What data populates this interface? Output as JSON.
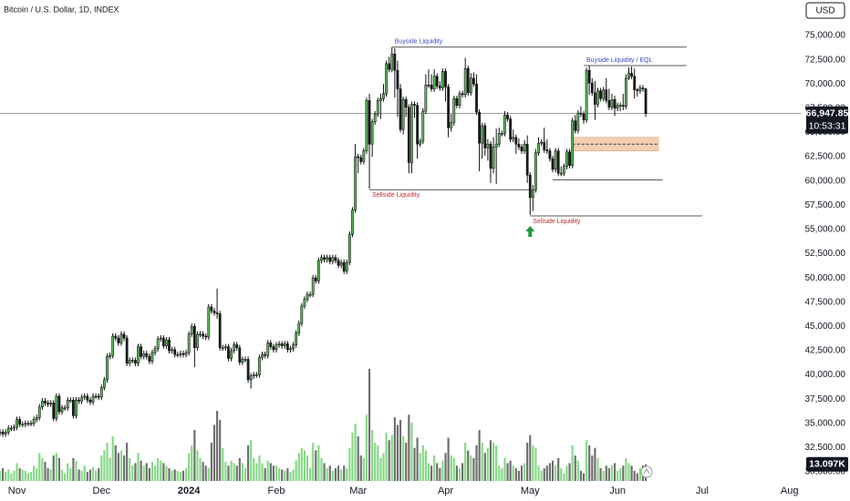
{
  "chart_data": {
    "type": "candlestick",
    "title": "Bitcoin / U.S. Dollar, 1D, INDEX",
    "currency_button": "USD",
    "up_color": "#5cc25c",
    "down_color": "#1a1a1a",
    "volume_up_color": "#86d886",
    "volume_down_color": "#6e6e6e",
    "xlim": [
      0,
      283
    ],
    "xticks": [
      {
        "value": 6,
        "label": "Nov"
      },
      {
        "value": 36,
        "label": "Dec"
      },
      {
        "value": 67,
        "label": "2024"
      },
      {
        "value": 98,
        "label": "Feb"
      },
      {
        "value": 127,
        "label": "Mar"
      },
      {
        "value": 158,
        "label": "Apr"
      },
      {
        "value": 188,
        "label": "May"
      },
      {
        "value": 219,
        "label": "Jun"
      },
      {
        "value": 249,
        "label": "Jul"
      },
      {
        "value": 280,
        "label": "Aug"
      }
    ],
    "ylim": [
      30000,
      75000
    ],
    "yticks": [
      {
        "value": 30000,
        "label": "30,000.00"
      },
      {
        "value": 32500,
        "label": "32,500.00"
      },
      {
        "value": 35000,
        "label": "35,000.00"
      },
      {
        "value": 37500,
        "label": "37,500.00"
      },
      {
        "value": 40000,
        "label": "40,000.00"
      },
      {
        "value": 42500,
        "label": "42,500.00"
      },
      {
        "value": 45000,
        "label": "45,000.00"
      },
      {
        "value": 47500,
        "label": "47,500.00"
      },
      {
        "value": 50000,
        "label": "50,000.00"
      },
      {
        "value": 52500,
        "label": "52,500.00"
      },
      {
        "value": 55000,
        "label": "55,000.00"
      },
      {
        "value": 57500,
        "label": "57,500.00"
      },
      {
        "value": 60000,
        "label": "60,000.00"
      },
      {
        "value": 62500,
        "label": "62,500.00"
      },
      {
        "value": 65000,
        "label": "65,000.00"
      },
      {
        "value": 67500,
        "label": "67,500.00"
      },
      {
        "value": 70000,
        "label": "70,000.00"
      },
      {
        "value": 72500,
        "label": "72,500.00"
      },
      {
        "value": 75000,
        "label": "75,000.00"
      }
    ],
    "open": [
      34000,
      34100,
      33900,
      34100,
      34500,
      34500,
      34600,
      35400,
      34900,
      34900,
      35000,
      35000,
      35000,
      35400,
      35600,
      36700,
      37300,
      37100,
      37000,
      37100,
      35500,
      37800,
      36200,
      36600,
      36600,
      37400,
      37400,
      35800,
      37400,
      37300,
      37700,
      37800,
      37400,
      37200,
      37800,
      37800,
      37700,
      38700,
      39500,
      41900,
      42000,
      44000,
      43800,
      43300,
      44200,
      43800,
      41200,
      41500,
      41500,
      41200,
      42900,
      41900,
      42200,
      41900,
      41400,
      42300,
      42700,
      43700,
      43800,
      43000,
      43600,
      42500,
      42600,
      42100,
      42100,
      42200,
      42100,
      42300,
      44200,
      45000,
      42800,
      44200,
      44200,
      44000,
      43900,
      47000,
      46600,
      46400,
      46300,
      42800,
      42800,
      42900,
      41700,
      42500,
      43100,
      42800,
      41300,
      41600,
      41600,
      39500,
      39900,
      40000,
      40000,
      41800,
      42100,
      42000,
      43300,
      42900,
      42600,
      43100,
      43200,
      43000,
      43200,
      42600,
      42700,
      43100,
      44300,
      45300,
      47100,
      47800,
      48300,
      48300,
      50000,
      49700,
      51800,
      52100,
      51900,
      52100,
      51700,
      52100,
      51800,
      51300,
      51600,
      50700,
      51600,
      54500,
      57000,
      62500,
      62400,
      62000,
      63100,
      68300,
      63800,
      66100,
      66900,
      68300,
      68500,
      69000,
      72100,
      71500,
      73100,
      71400,
      69500,
      65300,
      68400,
      67600,
      61900,
      67900,
      67800,
      63800,
      64100,
      67200,
      69900,
      69900,
      69500,
      70800,
      69800,
      69600,
      71300,
      69700,
      65500,
      66000,
      68500,
      67800,
      69000,
      68900,
      71600,
      69100,
      70600,
      70000,
      67100,
      63900,
      65700,
      63400,
      63800,
      61300,
      63500,
      63800,
      64900,
      64900,
      66800,
      66400,
      64300,
      64500,
      63800,
      63500,
      63100,
      63800,
      60600,
      58300,
      59100,
      62900,
      63900,
      64000,
      63200,
      63100,
      62300,
      61200,
      63100,
      60800,
      60800,
      61500,
      63000,
      61600,
      66200,
      65200,
      67000,
      66900,
      66300,
      71400,
      70100,
      69100,
      67900,
      69300,
      68500,
      69400,
      68300,
      67600,
      68400,
      67500,
      67800,
      67800,
      67700,
      70600,
      71100,
      70800,
      69400,
      69300,
      69600,
      69500
    ],
    "high": [
      34400,
      34400,
      34400,
      34800,
      34800,
      34900,
      35700,
      35700,
      35200,
      35300,
      35300,
      35300,
      35700,
      35900,
      37000,
      37600,
      37600,
      37400,
      37400,
      37400,
      38100,
      38100,
      36900,
      36900,
      37700,
      37700,
      37700,
      37700,
      37700,
      38000,
      38100,
      38100,
      37700,
      38100,
      38100,
      38100,
      39000,
      39800,
      42200,
      42300,
      44300,
      44300,
      44100,
      44500,
      44500,
      44100,
      41800,
      41800,
      41800,
      43200,
      43200,
      42500,
      42500,
      42200,
      42600,
      43000,
      44000,
      44100,
      44100,
      43900,
      43900,
      42900,
      42900,
      42400,
      42500,
      42500,
      42600,
      44500,
      45300,
      45300,
      44500,
      44500,
      44500,
      44300,
      47300,
      47300,
      46900,
      48900,
      46600,
      43100,
      43200,
      43200,
      42800,
      43400,
      43400,
      43100,
      41900,
      41900,
      41900,
      40200,
      40300,
      40300,
      42100,
      42400,
      42400,
      43600,
      43600,
      43200,
      43400,
      43500,
      43500,
      43500,
      43500,
      43000,
      43400,
      44600,
      45600,
      47400,
      48100,
      48600,
      48600,
      50300,
      50300,
      52100,
      52400,
      52400,
      52400,
      52400,
      52400,
      52400,
      52100,
      51900,
      51900,
      51900,
      54800,
      57300,
      63800,
      62800,
      62700,
      63400,
      68600,
      69000,
      66400,
      67200,
      68600,
      69000,
      70000,
      72400,
      72800,
      73800,
      73700,
      72400,
      70000,
      68700,
      68700,
      67900,
      68200,
      68200,
      68100,
      64400,
      67500,
      71000,
      71500,
      71000,
      71500,
      71100,
      70300,
      71600,
      71600,
      70000,
      66900,
      68800,
      68800,
      69300,
      69300,
      72700,
      71900,
      71100,
      71200,
      71000,
      67400,
      66000,
      66000,
      64300,
      64100,
      64500,
      65400,
      65500,
      65200,
      67200,
      67100,
      66700,
      65300,
      64800,
      64400,
      63800,
      64200,
      64700,
      60900,
      59600,
      63300,
      64500,
      64300,
      65500,
      64300,
      63400,
      62600,
      63400,
      63400,
      61500,
      61800,
      63300,
      63300,
      66500,
      66800,
      67300,
      67700,
      67200,
      71700,
      71900,
      70600,
      70300,
      69600,
      69600,
      69700,
      70600,
      69500,
      69000,
      68800,
      68100,
      68100,
      69000,
      71000,
      71700,
      71800,
      71600,
      69600,
      69900,
      69900,
      69600
    ],
    "low": [
      33700,
      33600,
      33600,
      33800,
      34200,
      34200,
      34300,
      34600,
      34600,
      34600,
      34700,
      34700,
      34700,
      35100,
      35300,
      36400,
      36800,
      36700,
      36700,
      35200,
      35200,
      35900,
      35900,
      36300,
      36300,
      37100,
      35500,
      35500,
      37000,
      37000,
      37400,
      37100,
      36900,
      36900,
      37500,
      37400,
      37400,
      38400,
      39200,
      41600,
      41700,
      43500,
      43000,
      43000,
      43500,
      40900,
      40900,
      41200,
      40900,
      40900,
      41600,
      41600,
      41600,
      41100,
      41100,
      42000,
      42400,
      43400,
      42700,
      42700,
      42200,
      42200,
      41800,
      41800,
      41800,
      41800,
      41800,
      42000,
      43900,
      40800,
      42500,
      43900,
      43700,
      43600,
      43600,
      46300,
      46100,
      45800,
      42500,
      42500,
      42500,
      41400,
      41400,
      42200,
      42500,
      41000,
      41000,
      41300,
      39200,
      38600,
      39600,
      39700,
      39700,
      41500,
      41700,
      41700,
      42600,
      42300,
      42300,
      42800,
      42700,
      42700,
      42300,
      42300,
      42400,
      42800,
      44000,
      45000,
      46800,
      47500,
      48000,
      48000,
      49400,
      49400,
      51500,
      51600,
      51600,
      51400,
      51400,
      51500,
      51000,
      51000,
      50400,
      50400,
      51300,
      54200,
      56700,
      60800,
      61700,
      61700,
      62800,
      59200,
      62500,
      65800,
      66600,
      66400,
      68200,
      68700,
      71200,
      71200,
      68600,
      66600,
      65000,
      64800,
      66600,
      60800,
      60800,
      66500,
      62300,
      63500,
      63800,
      66900,
      69600,
      69200,
      69200,
      69500,
      69300,
      69300,
      68200,
      64500,
      65100,
      65700,
      67500,
      67500,
      68600,
      68600,
      68800,
      68800,
      69700,
      66800,
      61000,
      62300,
      62600,
      62100,
      59800,
      60800,
      59700,
      63500,
      64600,
      64600,
      66100,
      64000,
      64000,
      62800,
      63200,
      62800,
      62800,
      59800,
      56500,
      56900,
      58800,
      62600,
      63600,
      62900,
      62800,
      62000,
      60900,
      60900,
      60500,
      60500,
      60500,
      61200,
      61300,
      61300,
      64900,
      64900,
      66600,
      65900,
      66000,
      68900,
      68800,
      66300,
      67600,
      68200,
      68200,
      68000,
      67300,
      67300,
      66700,
      67200,
      67200,
      67300,
      67400,
      70400,
      70500,
      68500,
      68700,
      69000,
      69200,
      66600
    ],
    "close": [
      34100,
      33900,
      34100,
      34500,
      34500,
      34600,
      35400,
      34900,
      34900,
      35000,
      35000,
      35000,
      35400,
      35600,
      36700,
      37300,
      37100,
      37000,
      37100,
      35500,
      37800,
      36200,
      36600,
      36600,
      37400,
      37400,
      35800,
      37400,
      37300,
      37700,
      37800,
      37400,
      37200,
      37800,
      37800,
      37700,
      38700,
      39500,
      41900,
      42000,
      44000,
      43800,
      43300,
      44200,
      43800,
      41200,
      41500,
      41500,
      41200,
      42900,
      41900,
      42200,
      41900,
      41400,
      42300,
      42700,
      43700,
      43800,
      43000,
      43600,
      42500,
      42600,
      42100,
      42100,
      42200,
      42100,
      42300,
      44200,
      45000,
      42800,
      44200,
      44200,
      44000,
      43900,
      47000,
      46600,
      46400,
      46300,
      42800,
      42800,
      42900,
      41700,
      42500,
      43100,
      42800,
      41300,
      41600,
      41600,
      39500,
      39900,
      40000,
      40000,
      41800,
      42100,
      42000,
      43300,
      42900,
      42600,
      43100,
      43200,
      43000,
      43200,
      42600,
      42700,
      43100,
      44300,
      45300,
      47100,
      47800,
      48300,
      48300,
      50000,
      49700,
      51800,
      52100,
      51900,
      52100,
      51700,
      52100,
      51800,
      51300,
      51600,
      50700,
      51600,
      54500,
      57000,
      62500,
      62400,
      62000,
      63100,
      68300,
      63800,
      66100,
      66900,
      68300,
      68500,
      69000,
      72100,
      71500,
      73100,
      71400,
      69500,
      65300,
      68400,
      67600,
      61900,
      67900,
      67800,
      63800,
      64100,
      67200,
      69900,
      69900,
      69500,
      70800,
      69800,
      69600,
      71300,
      69700,
      65500,
      66000,
      68500,
      67800,
      69000,
      68900,
      71600,
      69100,
      70600,
      70000,
      67100,
      63900,
      65700,
      63400,
      63800,
      61300,
      63500,
      63800,
      64900,
      64900,
      66800,
      66400,
      64300,
      64500,
      63800,
      63500,
      63100,
      63800,
      60600,
      58300,
      59100,
      62900,
      63900,
      64000,
      63200,
      63100,
      62300,
      61200,
      63100,
      60800,
      60800,
      61500,
      63000,
      61600,
      66200,
      65200,
      67000,
      66900,
      66300,
      71400,
      70100,
      69100,
      67900,
      69300,
      68500,
      69400,
      68300,
      67600,
      68400,
      67500,
      67800,
      67800,
      67700,
      70600,
      71100,
      70800,
      69400,
      69300,
      69600,
      69500,
      66947.85
    ],
    "volume": [
      8,
      10,
      7,
      9,
      6,
      8,
      14,
      10,
      9,
      8,
      6,
      7,
      12,
      10,
      22,
      18,
      15,
      10,
      9,
      20,
      22,
      18,
      9,
      6,
      14,
      10,
      18,
      16,
      9,
      8,
      12,
      7,
      9,
      11,
      8,
      10,
      20,
      24,
      30,
      18,
      35,
      28,
      22,
      24,
      20,
      30,
      18,
      12,
      14,
      22,
      16,
      12,
      14,
      10,
      15,
      12,
      18,
      16,
      14,
      12,
      10,
      8,
      9,
      8,
      7,
      8,
      10,
      22,
      28,
      40,
      24,
      18,
      15,
      12,
      10,
      30,
      44,
      55,
      48,
      26,
      15,
      12,
      16,
      14,
      12,
      18,
      14,
      10,
      28,
      32,
      18,
      14,
      20,
      14,
      10,
      16,
      14,
      12,
      12,
      10,
      9,
      8,
      10,
      7,
      9,
      16,
      22,
      26,
      24,
      20,
      10,
      30,
      24,
      28,
      18,
      14,
      10,
      12,
      8,
      10,
      12,
      9,
      12,
      10,
      26,
      38,
      45,
      35,
      20,
      18,
      52,
      88,
      40,
      30,
      28,
      18,
      22,
      38,
      32,
      36,
      50,
      44,
      48,
      35,
      30,
      52,
      46,
      26,
      34,
      22,
      28,
      24,
      14,
      12,
      20,
      14,
      10,
      16,
      22,
      34,
      20,
      18,
      12,
      10,
      14,
      30,
      24,
      20,
      18,
      28,
      40,
      30,
      22,
      26,
      32,
      30,
      28,
      12,
      10,
      18,
      14,
      16,
      12,
      10,
      8,
      12,
      14,
      30,
      36,
      28,
      26,
      12,
      8,
      10,
      12,
      14,
      16,
      12,
      18,
      10,
      6,
      12,
      14,
      28,
      20,
      16,
      8,
      6,
      32,
      28,
      20,
      26,
      18,
      10,
      8,
      12,
      10,
      12,
      14,
      8,
      10,
      12,
      18,
      14,
      12,
      8,
      6,
      10,
      12,
      13.097
    ],
    "volume_label": "13.097K",
    "last_price_label": "66,947.85",
    "countdown": "10:53:31",
    "levels": [
      {
        "text": "Buyside Liquidity",
        "y": 73800,
        "x": [
          139,
          243.5
        ],
        "color": "#3949c4"
      },
      {
        "text": "Buyside Liquidity / EQL",
        "y": 71900,
        "x": [
          207,
          243.5
        ],
        "color": "#3949c4"
      },
      {
        "text": "Sellside Liquidity",
        "y": 59100,
        "x": [
          131,
          187.6
        ],
        "color": "#c62828"
      },
      {
        "text": "Sellside Liquidity",
        "y": 56400,
        "x": [
          188,
          249
        ],
        "color": "#c62828"
      },
      {
        "y": 60100,
        "x": [
          196,
          235
        ]
      }
    ],
    "zone": {
      "y": [
        63100,
        64500
      ],
      "x": [
        203,
        233.5
      ],
      "mid": 63800,
      "color": "#f3cfb3"
    },
    "arrow": {
      "x": 188,
      "y": 54800,
      "color": "#1e9a3a"
    }
  }
}
